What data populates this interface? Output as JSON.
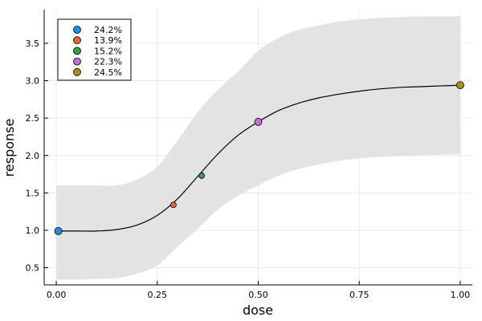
{
  "chart_data": {
    "type": "line",
    "xlabel": "dose",
    "ylabel": "response",
    "xlim": [
      -0.03,
      1.03
    ],
    "ylim": [
      0.27,
      3.95
    ],
    "xticks": [
      0.0,
      0.25,
      0.5,
      0.75,
      1.0
    ],
    "xtick_labels": [
      "0.00",
      "0.25",
      "0.50",
      "0.75",
      "1.00"
    ],
    "yticks": [
      0.5,
      1.0,
      1.5,
      2.0,
      2.5,
      3.0,
      3.5
    ],
    "ytick_labels": [
      "0.5",
      "1.0",
      "1.5",
      "2.0",
      "2.5",
      "3.0",
      "3.5"
    ],
    "grid": true,
    "legend_position": "top-left",
    "curve": {
      "color": "#000000",
      "x": [
        0.0,
        0.05,
        0.1,
        0.15,
        0.2,
        0.25,
        0.3,
        0.35,
        0.4,
        0.45,
        0.5,
        0.55,
        0.6,
        0.65,
        0.7,
        0.75,
        0.8,
        0.85,
        0.9,
        0.95,
        1.0
      ],
      "y": [
        0.99,
        0.99,
        0.99,
        1.01,
        1.07,
        1.2,
        1.42,
        1.72,
        2.02,
        2.27,
        2.45,
        2.6,
        2.7,
        2.77,
        2.82,
        2.86,
        2.89,
        2.91,
        2.92,
        2.93,
        2.94
      ]
    },
    "band": {
      "color": "#e3e3e3",
      "x": [
        0.0,
        0.05,
        0.1,
        0.15,
        0.2,
        0.25,
        0.3,
        0.35,
        0.4,
        0.45,
        0.5,
        0.55,
        0.6,
        0.65,
        0.7,
        0.75,
        0.8,
        0.85,
        0.9,
        0.95,
        1.0
      ],
      "lower": [
        0.34,
        0.34,
        0.35,
        0.36,
        0.42,
        0.53,
        0.78,
        1.02,
        1.28,
        1.46,
        1.6,
        1.73,
        1.82,
        1.88,
        1.93,
        1.96,
        1.98,
        1.99,
        2.0,
        2.01,
        2.02
      ],
      "upper": [
        1.6,
        1.6,
        1.6,
        1.6,
        1.68,
        1.85,
        2.2,
        2.58,
        2.88,
        3.12,
        3.4,
        3.57,
        3.68,
        3.74,
        3.79,
        3.82,
        3.84,
        3.85,
        3.86,
        3.86,
        3.86
      ]
    },
    "series": [
      {
        "name": "24.2%",
        "color": "#1f8fe3",
        "size": "large",
        "x": 0.005,
        "y": 0.99
      },
      {
        "name": "13.9%",
        "color": "#e2683c",
        "size": "small",
        "x": 0.29,
        "y": 1.34
      },
      {
        "name": "15.2%",
        "color": "#3a9e4b",
        "size": "small",
        "x": 0.36,
        "y": 1.73
      },
      {
        "name": "22.3%",
        "color": "#c271d2",
        "size": "large",
        "x": 0.5,
        "y": 2.45
      },
      {
        "name": "24.5%",
        "color": "#ac8f1b",
        "size": "large",
        "x": 1.0,
        "y": 2.94
      }
    ]
  }
}
